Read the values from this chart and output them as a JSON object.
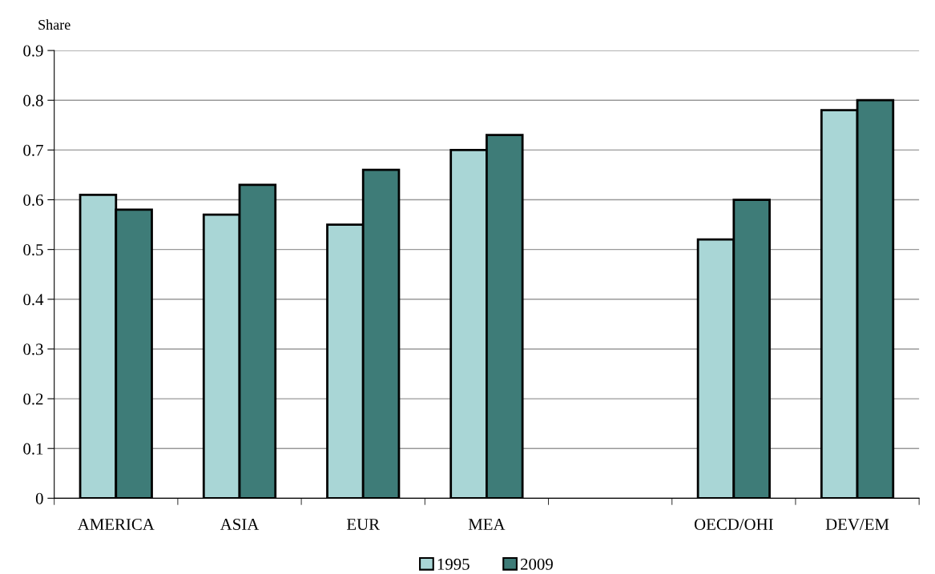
{
  "chart_data": {
    "type": "bar",
    "ylabel": "Share",
    "categories": [
      "AMERICA",
      "ASIA",
      "EUR",
      "MEA",
      null,
      "OECD/OHI",
      "DEV/EM"
    ],
    "series": [
      {
        "name": "1995",
        "color": "#a9d6d6",
        "values": [
          0.61,
          0.57,
          0.55,
          0.7,
          null,
          0.52,
          0.78
        ]
      },
      {
        "name": "2009",
        "color": "#3e7c78",
        "values": [
          0.58,
          0.63,
          0.66,
          0.73,
          null,
          0.6,
          0.8
        ]
      }
    ],
    "ylim": [
      0,
      0.9
    ],
    "yticks": [
      0,
      0.1,
      0.2,
      0.3,
      0.4,
      0.5,
      0.6,
      0.7,
      0.8,
      0.9
    ],
    "grid": "y",
    "legend": "bottom"
  }
}
